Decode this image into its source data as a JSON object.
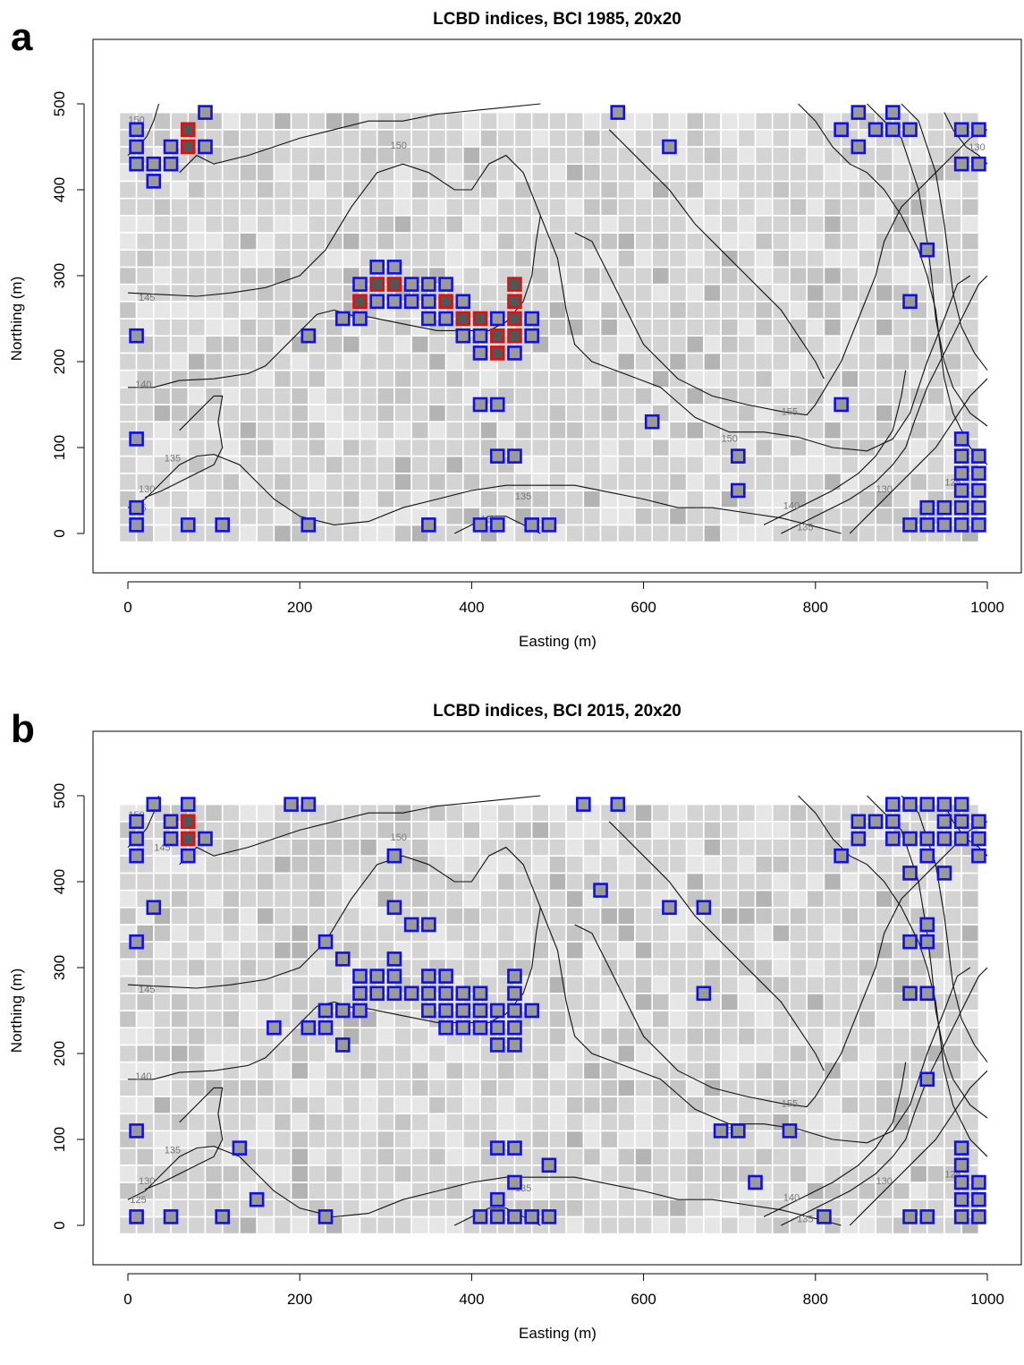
{
  "chart_data": [
    {
      "type": "heatmap",
      "panel_letter": "a",
      "title": "LCBD indices, BCI 1985, 20x20",
      "xlabel": "Easting (m)",
      "ylabel": "Northing (m)",
      "xlim": [
        0,
        1000
      ],
      "ylim": [
        0,
        500
      ],
      "xticks": [
        0,
        200,
        400,
        600,
        800,
        1000
      ],
      "yticks": [
        0,
        100,
        200,
        300,
        400,
        500
      ],
      "cell_size": 20,
      "contour_labels": [
        {
          "text": "150",
          "x": 315,
          "y": 452
        },
        {
          "text": "145",
          "x": 22,
          "y": 275
        },
        {
          "text": "140",
          "x": 18,
          "y": 174
        },
        {
          "text": "135",
          "x": 52,
          "y": 88
        },
        {
          "text": "130",
          "x": 22,
          "y": 52
        },
        {
          "text": "125",
          "x": 12,
          "y": 30
        },
        {
          "text": "135",
          "x": 460,
          "y": 44
        },
        {
          "text": "130",
          "x": 420,
          "y": 17
        },
        {
          "text": "150",
          "x": 700,
          "y": 111
        },
        {
          "text": "155",
          "x": 770,
          "y": 142
        },
        {
          "text": "140",
          "x": 772,
          "y": 33
        },
        {
          "text": "135",
          "x": 788,
          "y": 8
        },
        {
          "text": "130",
          "x": 880,
          "y": 52
        },
        {
          "text": "125",
          "x": 960,
          "y": 60
        },
        {
          "text": "150",
          "x": 10,
          "y": 482
        },
        {
          "text": "130",
          "x": 988,
          "y": 450
        }
      ],
      "significant_cells": [
        [
          10,
          470
        ],
        [
          10,
          450
        ],
        [
          10,
          430
        ],
        [
          30,
          430
        ],
        [
          30,
          410
        ],
        [
          50,
          430
        ],
        [
          50,
          450
        ],
        [
          90,
          450
        ],
        [
          90,
          490
        ],
        [
          270,
          290
        ],
        [
          270,
          250
        ],
        [
          250,
          250
        ],
        [
          290,
          310
        ],
        [
          290,
          270
        ],
        [
          310,
          310
        ],
        [
          310,
          270
        ],
        [
          330,
          290
        ],
        [
          330,
          270
        ],
        [
          350,
          290
        ],
        [
          350,
          270
        ],
        [
          350,
          250
        ],
        [
          370,
          290
        ],
        [
          370,
          250
        ],
        [
          390,
          270
        ],
        [
          390,
          230
        ],
        [
          410,
          230
        ],
        [
          410,
          210
        ],
        [
          430,
          250
        ],
        [
          450,
          210
        ],
        [
          470,
          250
        ],
        [
          470,
          230
        ],
        [
          10,
          230
        ],
        [
          210,
          230
        ],
        [
          410,
          150
        ],
        [
          430,
          150
        ],
        [
          430,
          90
        ],
        [
          450,
          90
        ],
        [
          10,
          110
        ],
        [
          10,
          30
        ],
        [
          10,
          10
        ],
        [
          70,
          10
        ],
        [
          110,
          10
        ],
        [
          210,
          10
        ],
        [
          350,
          10
        ],
        [
          410,
          10
        ],
        [
          430,
          10
        ],
        [
          470,
          10
        ],
        [
          490,
          10
        ],
        [
          570,
          490
        ],
        [
          630,
          450
        ],
        [
          610,
          130
        ],
        [
          710,
          90
        ],
        [
          710,
          50
        ],
        [
          830,
          470
        ],
        [
          850,
          490
        ],
        [
          850,
          450
        ],
        [
          870,
          470
        ],
        [
          890,
          490
        ],
        [
          890,
          470
        ],
        [
          910,
          470
        ],
        [
          830,
          150
        ],
        [
          930,
          330
        ],
        [
          910,
          270
        ],
        [
          970,
          470
        ],
        [
          990,
          470
        ],
        [
          970,
          430
        ],
        [
          990,
          430
        ],
        [
          970,
          110
        ],
        [
          970,
          90
        ],
        [
          990,
          90
        ],
        [
          970,
          70
        ],
        [
          990,
          70
        ],
        [
          970,
          50
        ],
        [
          990,
          50
        ],
        [
          930,
          30
        ],
        [
          950,
          30
        ],
        [
          970,
          30
        ],
        [
          990,
          30
        ],
        [
          910,
          10
        ],
        [
          930,
          10
        ],
        [
          950,
          10
        ],
        [
          970,
          10
        ],
        [
          990,
          10
        ]
      ],
      "highly_significant_cells": [
        [
          70,
          470
        ],
        [
          70,
          450
        ],
        [
          270,
          270
        ],
        [
          290,
          290
        ],
        [
          310,
          290
        ],
        [
          370,
          270
        ],
        [
          390,
          250
        ],
        [
          410,
          250
        ],
        [
          430,
          230
        ],
        [
          430,
          210
        ],
        [
          450,
          290
        ],
        [
          450,
          270
        ],
        [
          450,
          250
        ],
        [
          450,
          230
        ]
      ]
    },
    {
      "type": "heatmap",
      "panel_letter": "b",
      "title": "LCBD indices, BCI 2015, 20x20",
      "xlabel": "Easting (m)",
      "ylabel": "Northing (m)",
      "xlim": [
        0,
        1000
      ],
      "ylim": [
        0,
        500
      ],
      "xticks": [
        0,
        200,
        400,
        600,
        800,
        1000
      ],
      "yticks": [
        0,
        100,
        200,
        300,
        400,
        500
      ],
      "cell_size": 20,
      "contour_labels": [
        {
          "text": "150",
          "x": 315,
          "y": 452
        },
        {
          "text": "145",
          "x": 22,
          "y": 275
        },
        {
          "text": "140",
          "x": 18,
          "y": 174
        },
        {
          "text": "135",
          "x": 52,
          "y": 88
        },
        {
          "text": "130",
          "x": 22,
          "y": 52
        },
        {
          "text": "125",
          "x": 12,
          "y": 30
        },
        {
          "text": "135",
          "x": 460,
          "y": 44
        },
        {
          "text": "150",
          "x": 700,
          "y": 111
        },
        {
          "text": "155",
          "x": 770,
          "y": 142
        },
        {
          "text": "140",
          "x": 772,
          "y": 33
        },
        {
          "text": "135",
          "x": 788,
          "y": 8
        },
        {
          "text": "130",
          "x": 880,
          "y": 52
        },
        {
          "text": "125",
          "x": 960,
          "y": 60
        },
        {
          "text": "145",
          "x": 40,
          "y": 440
        },
        {
          "text": "150",
          "x": 10,
          "y": 478
        },
        {
          "text": "130",
          "x": 988,
          "y": 450
        }
      ],
      "significant_cells": [
        [
          30,
          490
        ],
        [
          70,
          490
        ],
        [
          190,
          490
        ],
        [
          210,
          490
        ],
        [
          530,
          490
        ],
        [
          570,
          490
        ],
        [
          10,
          470
        ],
        [
          50,
          470
        ],
        [
          10,
          450
        ],
        [
          50,
          450
        ],
        [
          90,
          450
        ],
        [
          10,
          430
        ],
        [
          70,
          430
        ],
        [
          310,
          430
        ],
        [
          550,
          390
        ],
        [
          30,
          370
        ],
        [
          310,
          370
        ],
        [
          630,
          370
        ],
        [
          670,
          370
        ],
        [
          330,
          350
        ],
        [
          350,
          350
        ],
        [
          10,
          330
        ],
        [
          230,
          330
        ],
        [
          250,
          310
        ],
        [
          310,
          310
        ],
        [
          270,
          290
        ],
        [
          290,
          290
        ],
        [
          310,
          290
        ],
        [
          350,
          290
        ],
        [
          370,
          290
        ],
        [
          450,
          290
        ],
        [
          270,
          270
        ],
        [
          290,
          270
        ],
        [
          310,
          270
        ],
        [
          330,
          270
        ],
        [
          350,
          270
        ],
        [
          370,
          270
        ],
        [
          390,
          270
        ],
        [
          410,
          270
        ],
        [
          450,
          270
        ],
        [
          670,
          270
        ],
        [
          230,
          250
        ],
        [
          250,
          250
        ],
        [
          270,
          250
        ],
        [
          350,
          250
        ],
        [
          370,
          250
        ],
        [
          390,
          250
        ],
        [
          410,
          250
        ],
        [
          430,
          250
        ],
        [
          450,
          250
        ],
        [
          470,
          250
        ],
        [
          170,
          230
        ],
        [
          210,
          230
        ],
        [
          230,
          230
        ],
        [
          370,
          230
        ],
        [
          390,
          230
        ],
        [
          410,
          230
        ],
        [
          430,
          230
        ],
        [
          450,
          230
        ],
        [
          250,
          210
        ],
        [
          430,
          210
        ],
        [
          450,
          210
        ],
        [
          10,
          110
        ],
        [
          690,
          110
        ],
        [
          710,
          110
        ],
        [
          770,
          110
        ],
        [
          130,
          90
        ],
        [
          430,
          90
        ],
        [
          450,
          90
        ],
        [
          490,
          70
        ],
        [
          450,
          50
        ],
        [
          730,
          50
        ],
        [
          150,
          30
        ],
        [
          430,
          30
        ],
        [
          10,
          10
        ],
        [
          50,
          10
        ],
        [
          110,
          10
        ],
        [
          230,
          10
        ],
        [
          410,
          10
        ],
        [
          430,
          10
        ],
        [
          450,
          10
        ],
        [
          470,
          10
        ],
        [
          490,
          10
        ],
        [
          810,
          10
        ],
        [
          890,
          490
        ],
        [
          910,
          490
        ],
        [
          930,
          490
        ],
        [
          950,
          490
        ],
        [
          970,
          490
        ],
        [
          850,
          470
        ],
        [
          870,
          470
        ],
        [
          890,
          470
        ],
        [
          950,
          470
        ],
        [
          970,
          470
        ],
        [
          990,
          470
        ],
        [
          850,
          450
        ],
        [
          890,
          450
        ],
        [
          910,
          450
        ],
        [
          930,
          450
        ],
        [
          950,
          450
        ],
        [
          970,
          450
        ],
        [
          990,
          450
        ],
        [
          830,
          430
        ],
        [
          930,
          430
        ],
        [
          990,
          430
        ],
        [
          910,
          410
        ],
        [
          950,
          410
        ],
        [
          930,
          350
        ],
        [
          910,
          330
        ],
        [
          930,
          330
        ],
        [
          910,
          270
        ],
        [
          930,
          270
        ],
        [
          930,
          170
        ],
        [
          970,
          90
        ],
        [
          970,
          70
        ],
        [
          970,
          50
        ],
        [
          990,
          50
        ],
        [
          970,
          30
        ],
        [
          990,
          30
        ],
        [
          910,
          10
        ],
        [
          930,
          10
        ],
        [
          970,
          10
        ],
        [
          990,
          10
        ]
      ],
      "highly_significant_cells": [
        [
          70,
          470
        ],
        [
          70,
          450
        ]
      ]
    }
  ]
}
